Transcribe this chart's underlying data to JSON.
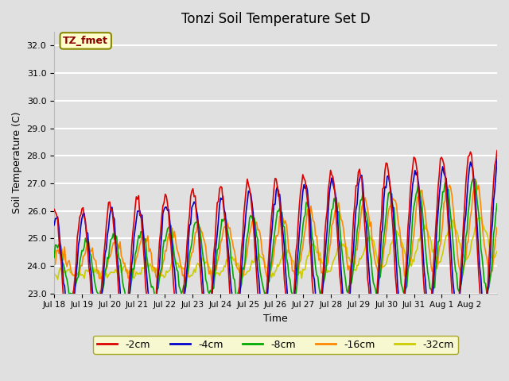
{
  "title": "Tonzi Soil Temperature Set D",
  "xlabel": "Time",
  "ylabel": "Soil Temperature (C)",
  "ylim": [
    23.0,
    32.5
  ],
  "annotation": "TZ_fmet",
  "series_colors": [
    "#dd0000",
    "#0000cc",
    "#00aa00",
    "#ff8800",
    "#cccc00"
  ],
  "series_labels": [
    "-2cm",
    "-4cm",
    "-8cm",
    "-16cm",
    "-32cm"
  ],
  "x_tick_labels": [
    "Jul 18",
    "Jul 19",
    "Jul 20",
    "Jul 21",
    "Jul 22",
    "Jul 23",
    "Jul 24",
    "Jul 25",
    "Jul 26",
    "Jul 27",
    "Jul 28",
    "Jul 29",
    "Jul 30",
    "Jul 31",
    "Aug 1",
    "Aug 2"
  ],
  "n_points": 384,
  "n_days": 16,
  "background_color": "#e0e0e0",
  "plot_bg_color": "#e0e0e0",
  "grid_color": "#ffffff",
  "legend_bg": "#ffffcc",
  "legend_edge": "#999900"
}
